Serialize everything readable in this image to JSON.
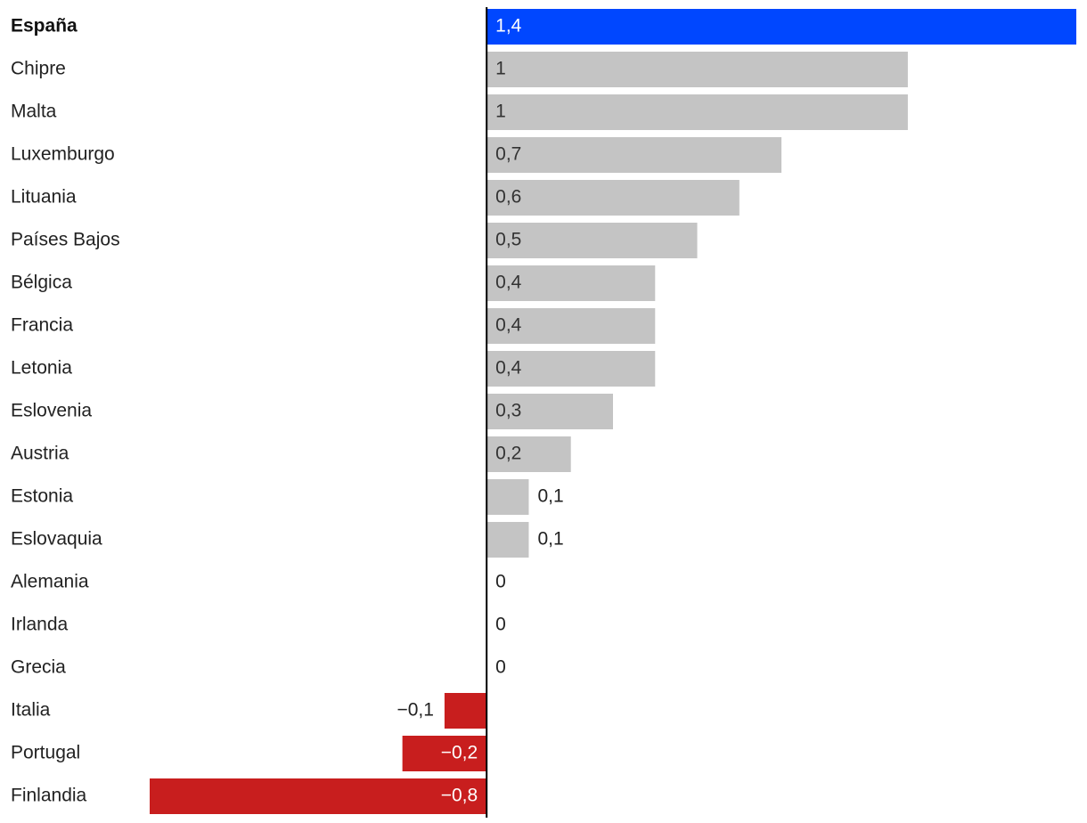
{
  "chart_data": {
    "type": "bar",
    "orientation": "horizontal",
    "categories": [
      "España",
      "Chipre",
      "Malta",
      "Luxemburgo",
      "Lituania",
      "Países Bajos",
      "Bélgica",
      "Francia",
      "Letonia",
      "Eslovenia",
      "Austria",
      "Estonia",
      "Eslovaquia",
      "Alemania",
      "Irlanda",
      "Grecia",
      "Italia",
      "Portugal",
      "Finlandia"
    ],
    "values": [
      1.4,
      1,
      1,
      0.7,
      0.6,
      0.5,
      0.4,
      0.4,
      0.4,
      0.3,
      0.2,
      0.1,
      0.1,
      0,
      0,
      0,
      -0.1,
      -0.2,
      -0.8
    ],
    "value_labels": [
      "1,4",
      "1",
      "1",
      "0,7",
      "0,6",
      "0,5",
      "0,4",
      "0,4",
      "0,4",
      "0,3",
      "0,2",
      "0,1",
      "0,1",
      "0",
      "0",
      "0",
      "−0,1",
      "−0,2",
      "−0,8"
    ],
    "colors": [
      "#0047ff",
      "#c4c4c4",
      "#c4c4c4",
      "#c4c4c4",
      "#c4c4c4",
      "#c4c4c4",
      "#c4c4c4",
      "#c4c4c4",
      "#c4c4c4",
      "#c4c4c4",
      "#c4c4c4",
      "#c4c4c4",
      "#c4c4c4",
      "#c4c4c4",
      "#c4c4c4",
      "#c4c4c4",
      "#c81e1e",
      "#c81e1e",
      "#c81e1e"
    ]
  }
}
